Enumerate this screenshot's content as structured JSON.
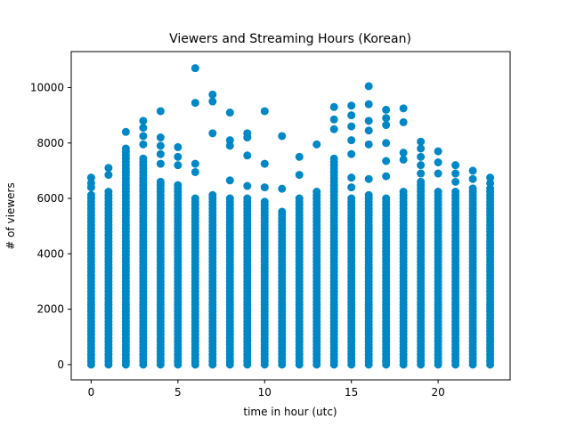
{
  "chart_data": {
    "type": "scatter",
    "title": "Viewers and Streaming Hours (Korean)",
    "xlabel": "time in hour (utc)",
    "ylabel": "# of viewers",
    "xlim": [
      -1.15,
      24.15
    ],
    "ylim": [
      -550,
      11300
    ],
    "xticks": [
      0,
      5,
      10,
      15,
      20
    ],
    "yticks": [
      0,
      2000,
      4000,
      6000,
      8000,
      10000
    ],
    "grid": false,
    "marker_color": "#0088c6",
    "series": [
      {
        "points_by_hour": [
          {
            "x": 0,
            "dense_max": 6200,
            "sparse": [
              6750,
              6550,
              6400
            ]
          },
          {
            "x": 1,
            "dense_max": 6300,
            "sparse": [
              7100,
              6850
            ]
          },
          {
            "x": 2,
            "dense_max": 7900,
            "sparse": [
              8400
            ]
          },
          {
            "x": 3,
            "dense_max": 7500,
            "sparse": [
              8800,
              8550,
              8250,
              7950
            ]
          },
          {
            "x": 4,
            "dense_max": 6700,
            "sparse": [
              9150,
              8200,
              7900,
              7600,
              7250
            ]
          },
          {
            "x": 5,
            "dense_max": 6500,
            "sparse": [
              7850,
              7500,
              7200
            ]
          },
          {
            "x": 6,
            "dense_max": 6000,
            "sparse": [
              10700,
              9450,
              7250,
              6950
            ]
          },
          {
            "x": 7,
            "dense_max": 6150,
            "sparse": [
              9750,
              9500,
              8350
            ]
          },
          {
            "x": 8,
            "dense_max": 6000,
            "sparse": [
              9100,
              8100,
              7900,
              6650
            ]
          },
          {
            "x": 9,
            "dense_max": 6000,
            "sparse": [
              8350,
              8200,
              7550,
              6450
            ]
          },
          {
            "x": 10,
            "dense_max": 5900,
            "sparse": [
              9150,
              7250,
              6400
            ]
          },
          {
            "x": 11,
            "dense_max": 5600,
            "sparse": [
              8250,
              6350
            ]
          },
          {
            "x": 12,
            "dense_max": 6000,
            "sparse": [
              7500,
              6850
            ]
          },
          {
            "x": 13,
            "dense_max": 6250,
            "sparse": [
              7950
            ]
          },
          {
            "x": 14,
            "dense_max": 7500,
            "sparse": [
              9300,
              8850,
              8500
            ]
          },
          {
            "x": 15,
            "dense_max": 6000,
            "sparse": [
              9350,
              9000,
              8600,
              8100,
              7600,
              6750,
              6400
            ]
          },
          {
            "x": 16,
            "dense_max": 6150,
            "sparse": [
              10050,
              9400,
              8800,
              8450,
              7950,
              6700
            ]
          },
          {
            "x": 17,
            "dense_max": 6000,
            "sparse": [
              9200,
              8900,
              8650,
              8000,
              7350,
              6800
            ]
          },
          {
            "x": 18,
            "dense_max": 6300,
            "sparse": [
              9250,
              8750,
              7650,
              7400
            ]
          },
          {
            "x": 19,
            "dense_max": 6600,
            "sparse": [
              8050,
              7800,
              7500,
              7200,
              6900
            ]
          },
          {
            "x": 20,
            "dense_max": 6300,
            "sparse": [
              7700,
              7300,
              6900
            ]
          },
          {
            "x": 21,
            "dense_max": 6350,
            "sparse": [
              7200,
              6900,
              6600
            ]
          },
          {
            "x": 22,
            "dense_max": 6400,
            "sparse": [
              7000,
              6700
            ]
          },
          {
            "x": 23,
            "dense_max": 6400,
            "sparse": [
              6750,
              6550
            ]
          }
        ]
      }
    ]
  }
}
